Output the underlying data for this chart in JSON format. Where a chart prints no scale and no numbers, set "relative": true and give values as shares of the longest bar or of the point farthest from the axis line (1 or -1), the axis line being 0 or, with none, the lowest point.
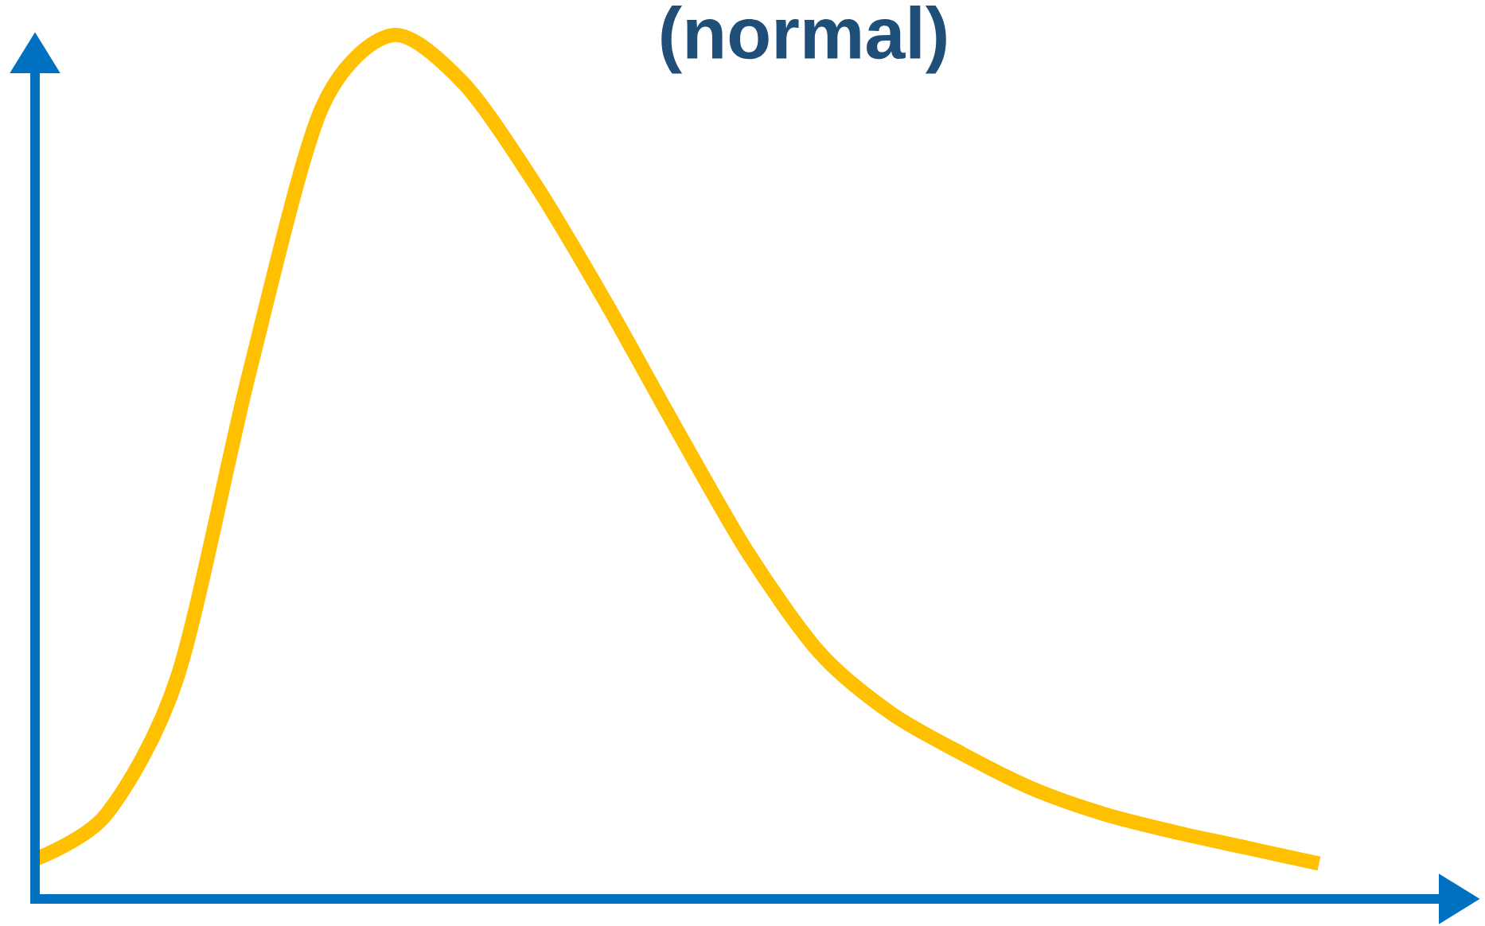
{
  "chart_data": {
    "type": "line",
    "title": "(normal)",
    "relative": true,
    "categories": [
      null,
      null,
      null,
      null,
      null,
      null,
      null,
      null,
      null,
      null,
      null,
      null,
      null,
      null,
      null,
      null,
      null,
      null,
      null
    ],
    "series": [
      {
        "color": "#ffc000",
        "values": [
          0.046,
          0.098,
          0.258,
          0.608,
          0.912,
          1,
          0.945,
          0.829,
          0.691,
          0.543,
          0.4,
          0.285,
          0.215,
          0.168,
          0.127,
          0.098,
          0.077,
          0.059,
          0.041
        ]
      }
    ],
    "marker": "none",
    "line_style": "solid"
  }
}
